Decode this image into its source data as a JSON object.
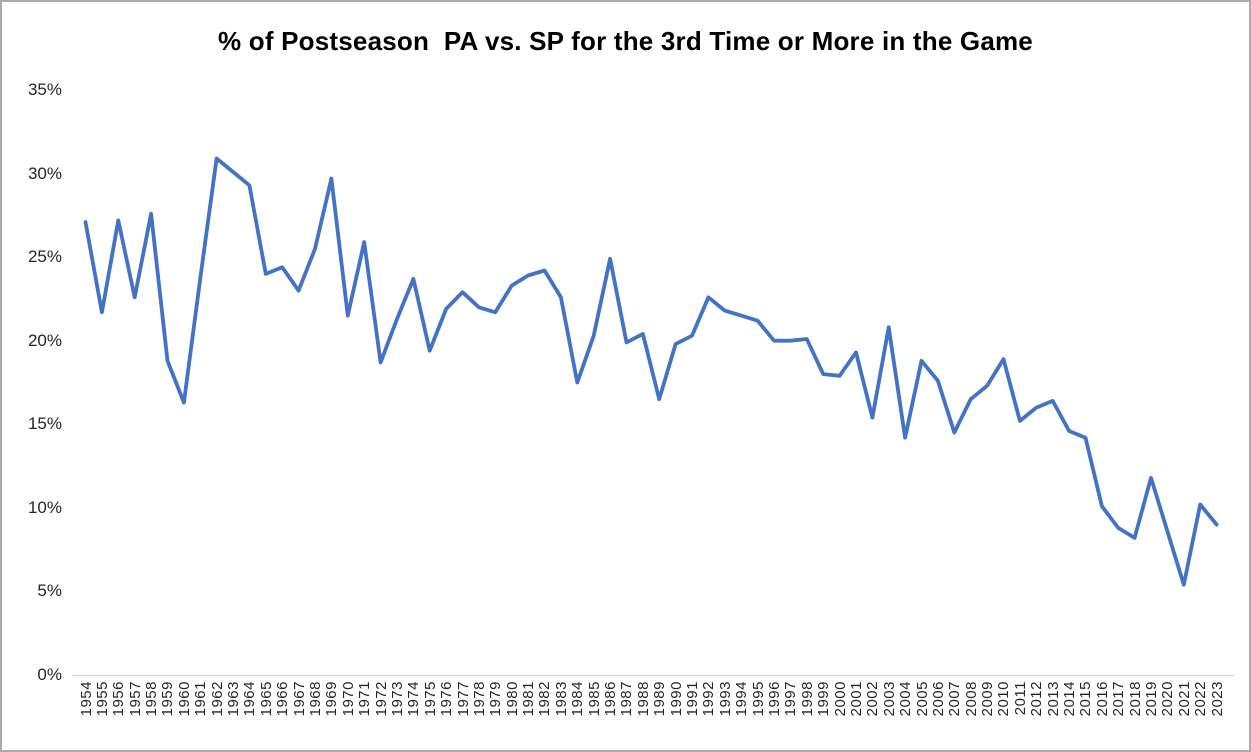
{
  "chart_data": {
    "type": "line",
    "title": "% of Postseason  PA vs. SP for the 3rd Time or More in the Game",
    "x": [
      1954,
      1955,
      1956,
      1957,
      1958,
      1959,
      1960,
      1961,
      1962,
      1963,
      1964,
      1965,
      1966,
      1967,
      1968,
      1969,
      1970,
      1971,
      1972,
      1973,
      1974,
      1975,
      1976,
      1977,
      1978,
      1979,
      1980,
      1981,
      1982,
      1983,
      1984,
      1985,
      1986,
      1987,
      1988,
      1989,
      1990,
      1991,
      1992,
      1993,
      1994,
      1995,
      1996,
      1997,
      1998,
      1999,
      2000,
      2001,
      2002,
      2003,
      2004,
      2005,
      2006,
      2007,
      2008,
      2009,
      2010,
      2011,
      2012,
      2013,
      2014,
      2015,
      2016,
      2017,
      2018,
      2019,
      2020,
      2021,
      2022,
      2023
    ],
    "values": [
      27.1,
      21.7,
      27.2,
      22.6,
      27.6,
      18.8,
      16.3,
      23.7,
      30.9,
      30.1,
      29.3,
      24.0,
      24.4,
      23.0,
      25.5,
      29.7,
      21.5,
      25.9,
      18.7,
      21.3,
      23.7,
      19.4,
      21.9,
      22.9,
      22.0,
      21.7,
      23.3,
      23.9,
      24.2,
      22.6,
      17.5,
      20.3,
      24.9,
      19.9,
      20.4,
      16.5,
      19.8,
      20.3,
      22.6,
      21.8,
      21.5,
      21.2,
      20.0,
      20.0,
      20.1,
      18.0,
      17.9,
      19.3,
      15.4,
      20.8,
      14.2,
      18.8,
      17.6,
      14.5,
      16.5,
      17.3,
      18.9,
      15.2,
      16.0,
      16.4,
      14.6,
      14.2,
      10.1,
      8.8,
      8.2,
      11.8,
      8.6,
      5.4,
      10.2,
      9.0
    ],
    "xlabel": "",
    "ylabel": "",
    "ylim": [
      0,
      35
    ],
    "y_ticks": [
      "0%",
      "5%",
      "10%",
      "15%",
      "20%",
      "25%",
      "30%",
      "35%"
    ],
    "y_tick_values": [
      0,
      5,
      10,
      15,
      20,
      25,
      30,
      35
    ],
    "grid": false,
    "legend": false,
    "line_color": "#4472C4",
    "axis_line_color": "#D9D9D9",
    "tick_text_color": "#262626",
    "title_color": "#000000"
  }
}
